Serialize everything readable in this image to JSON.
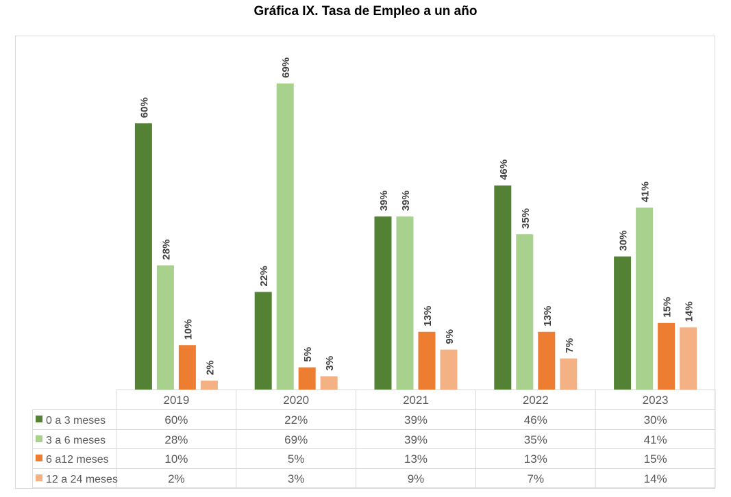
{
  "chart_data": {
    "type": "bar",
    "title": "Gráfica IX. Tasa de Empleo a un año",
    "categories": [
      "2019",
      "2020",
      "2021",
      "2022",
      "2023"
    ],
    "series": [
      {
        "name": "0 a 3 meses",
        "color": "#548235",
        "values": [
          60,
          22,
          39,
          46,
          30
        ]
      },
      {
        "name": "3 a 6 meses",
        "color": "#a9d18e",
        "values": [
          28,
          69,
          39,
          35,
          41
        ]
      },
      {
        "name": "6 a12 meses",
        "color": "#ed7d31",
        "values": [
          10,
          5,
          13,
          13,
          15
        ]
      },
      {
        "name": "12 a 24 meses",
        "color": "#f4b183",
        "values": [
          2,
          3,
          9,
          7,
          14
        ]
      }
    ],
    "value_format": "percent",
    "ylim": [
      0,
      70
    ],
    "grid": false,
    "data_labels": true,
    "legend": "data-table-bottom"
  }
}
